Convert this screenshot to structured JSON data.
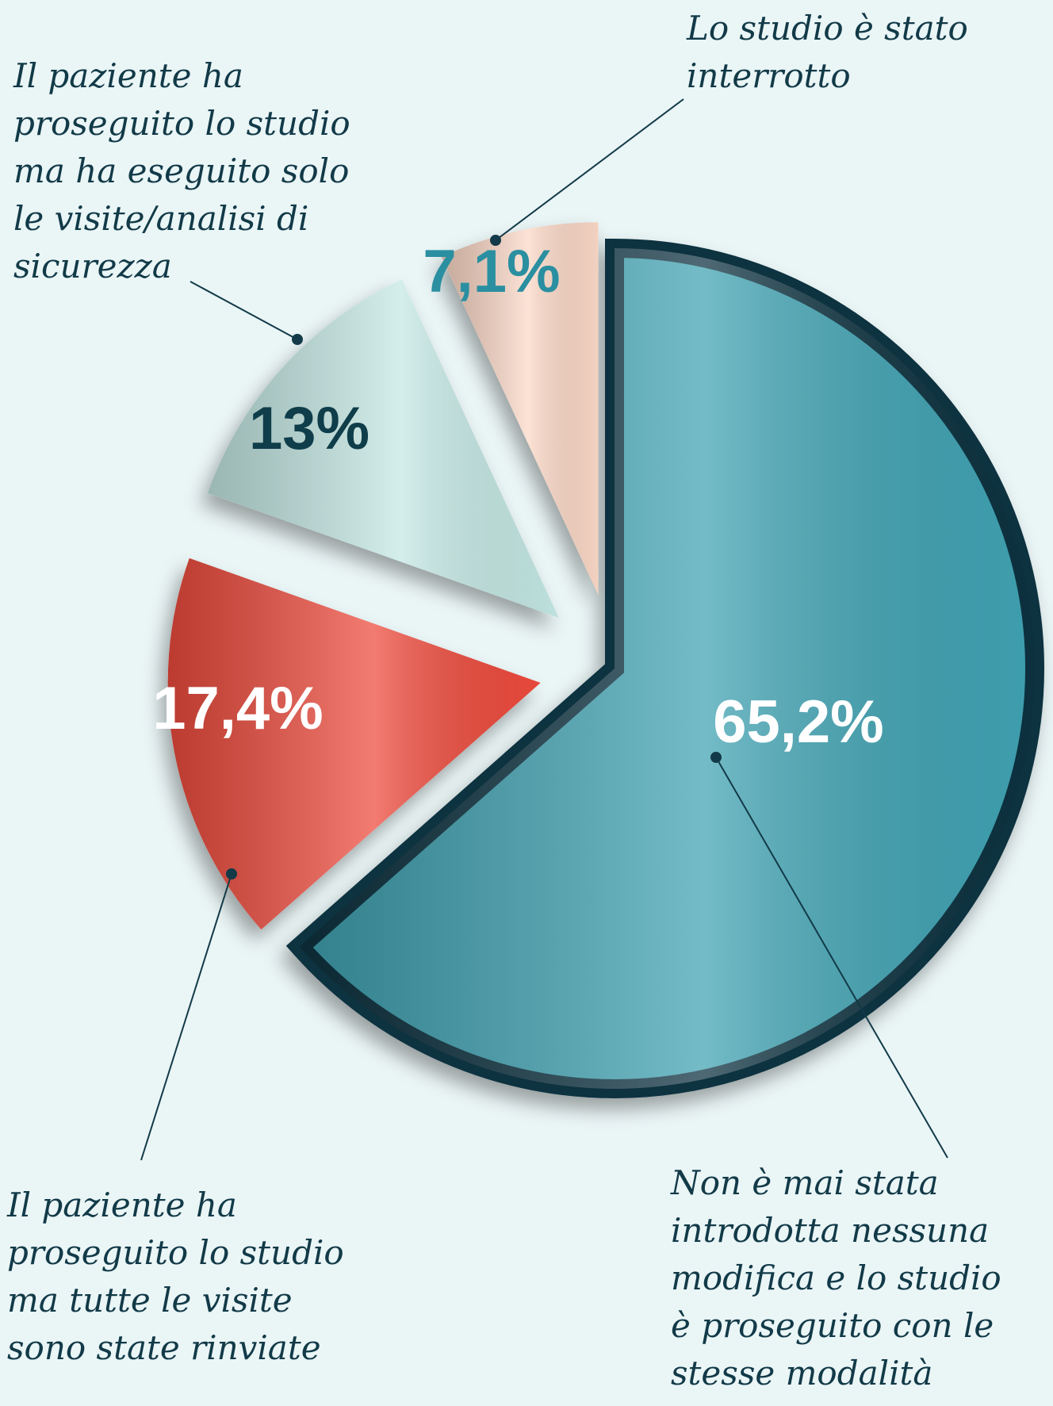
{
  "chart_data": {
    "type": "pie",
    "categories": [
      "Non è mai stata introdotta nessuna modifica e lo studio è proseguito con le stesse modalità",
      "Il paziente ha proseguito lo studio ma tutte le visite sono state rinviate",
      "Il paziente ha proseguito lo studio ma ha eseguito solo le visite/analisi di sicurezza",
      "Lo studio è stato interrotto"
    ],
    "values": [
      65.2,
      17.4,
      13,
      7.1
    ],
    "value_labels": [
      "65,2%",
      "17,4%",
      "13%",
      "7,1%"
    ],
    "colors": [
      "#3fa3b3",
      "#ee4b3d",
      "#c4e8e4",
      "#fbd8c6"
    ]
  }
}
